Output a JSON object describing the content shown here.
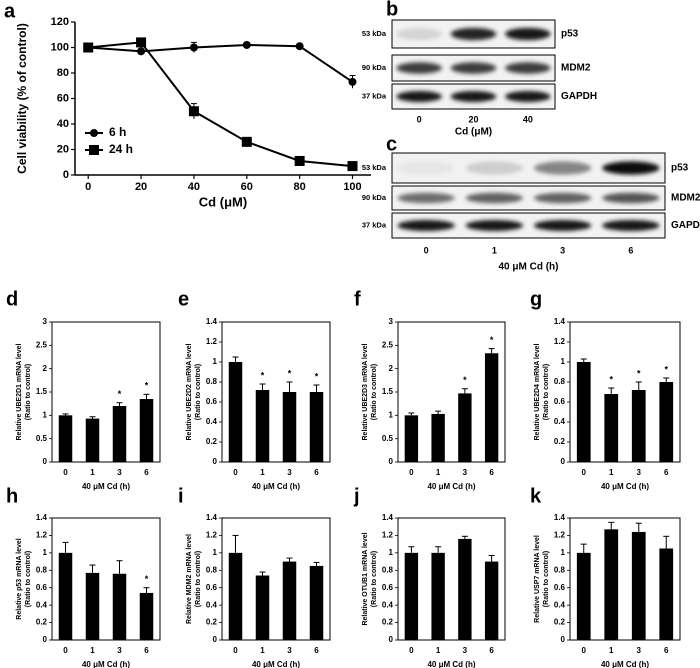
{
  "chart_data": [
    {
      "label": "a",
      "type": "line",
      "xlabel": "Cd (μM)",
      "ylabel": "Cell viability (% of control)",
      "x": [
        0,
        20,
        40,
        60,
        80,
        100
      ],
      "series": [
        {
          "name": "6 h",
          "color": "#000000",
          "marker": "circle",
          "values": [
            100,
            97,
            100,
            102,
            101,
            73
          ],
          "errors": [
            2,
            2,
            4,
            1,
            1,
            5
          ]
        },
        {
          "name": "24 h",
          "color": "#000000",
          "marker": "square",
          "values": [
            100,
            104,
            50,
            26,
            11,
            7
          ],
          "errors": [
            2,
            2,
            6,
            2,
            2,
            1
          ]
        }
      ],
      "xlim": [
        -5,
        107
      ],
      "ylim": [
        0,
        120
      ],
      "xticks": [
        0,
        20,
        40,
        60,
        80,
        100
      ],
      "yticks": [
        0,
        20,
        40,
        60,
        80,
        100,
        120
      ],
      "legend": "lower-left"
    },
    {
      "label": "d",
      "type": "bar",
      "xlabel": "40 μM Cd (h)",
      "ylabel": "Relative UBE2D1 mRNA level",
      "ylabel2": "(Ratio to control)",
      "color": "#000000",
      "categories": [
        "0",
        "1",
        "3",
        "6"
      ],
      "values": [
        1.0,
        0.93,
        1.2,
        1.35
      ],
      "errors": [
        0.03,
        0.04,
        0.07,
        0.1
      ],
      "annotations": [
        {
          "index": 2,
          "text": "*"
        },
        {
          "index": 3,
          "text": "*"
        }
      ],
      "ylim": [
        0,
        3
      ],
      "yticks": [
        0,
        0.5,
        1,
        1.5,
        2,
        2.5,
        3
      ]
    },
    {
      "label": "e",
      "type": "bar",
      "xlabel": "40 μM Cd (h)",
      "ylabel": "Relative UBE2D2 mRNA level",
      "ylabel2": "(Ratio to control)",
      "color": "#000000",
      "categories": [
        "0",
        "1",
        "3",
        "6"
      ],
      "values": [
        1.0,
        0.72,
        0.7,
        0.7
      ],
      "errors": [
        0.05,
        0.06,
        0.1,
        0.07
      ],
      "annotations": [
        {
          "index": 1,
          "text": "*"
        },
        {
          "index": 2,
          "text": "*"
        },
        {
          "index": 3,
          "text": "*"
        }
      ],
      "ylim": [
        0,
        1.4
      ],
      "yticks": [
        0,
        0.2,
        0.4,
        0.6,
        0.8,
        1,
        1.2,
        1.4
      ]
    },
    {
      "label": "f",
      "type": "bar",
      "xlabel": "40 μM Cd (h)",
      "ylabel": "Relative UBE2D3 mRNA level",
      "ylabel2": "(Ratio to control)",
      "color": "#000000",
      "categories": [
        "0",
        "1",
        "3",
        "6"
      ],
      "values": [
        1.0,
        1.03,
        1.47,
        2.33
      ],
      "errors": [
        0.05,
        0.06,
        0.1,
        0.1
      ],
      "annotations": [
        {
          "index": 2,
          "text": "*"
        },
        {
          "index": 3,
          "text": "*"
        }
      ],
      "ylim": [
        0,
        3
      ],
      "yticks": [
        0,
        0.5,
        1,
        1.5,
        2,
        2.5,
        3
      ]
    },
    {
      "label": "g",
      "type": "bar",
      "xlabel": "40 μM Cd (h)",
      "ylabel": "Relative UBE2D4 mRNA level",
      "ylabel2": "(Ratio to control)",
      "color": "#000000",
      "categories": [
        "0",
        "1",
        "3",
        "6"
      ],
      "values": [
        1.0,
        0.68,
        0.72,
        0.8
      ],
      "errors": [
        0.03,
        0.06,
        0.08,
        0.04
      ],
      "annotations": [
        {
          "index": 1,
          "text": "*"
        },
        {
          "index": 2,
          "text": "*"
        },
        {
          "index": 3,
          "text": "*"
        }
      ],
      "ylim": [
        0,
        1.4
      ],
      "yticks": [
        0,
        0.2,
        0.4,
        0.6,
        0.8,
        1,
        1.2,
        1.4
      ]
    },
    {
      "label": "h",
      "type": "bar",
      "xlabel": "40 μM Cd (h)",
      "ylabel": "Relative p53 mRNA level",
      "ylabel2": "(Ratio to control)",
      "color": "#000000",
      "categories": [
        "0",
        "1",
        "3",
        "6"
      ],
      "values": [
        1.0,
        0.77,
        0.76,
        0.54
      ],
      "errors": [
        0.12,
        0.09,
        0.15,
        0.06
      ],
      "annotations": [
        {
          "index": 3,
          "text": "*"
        }
      ],
      "ylim": [
        0,
        1.4
      ],
      "yticks": [
        0,
        0.2,
        0.4,
        0.6,
        0.8,
        1,
        1.2,
        1.4
      ]
    },
    {
      "label": "i",
      "type": "bar",
      "xlabel": "40 μM Cd (h)",
      "ylabel": "Relative MDM2 mRNA level",
      "ylabel2": "(Ratio to control)",
      "color": "#000000",
      "categories": [
        "0",
        "1",
        "3",
        "6"
      ],
      "values": [
        1.0,
        0.74,
        0.9,
        0.85
      ],
      "errors": [
        0.2,
        0.04,
        0.04,
        0.04
      ],
      "ylim": [
        0,
        1.4
      ],
      "yticks": [
        0,
        0.2,
        0.4,
        0.6,
        0.8,
        1,
        1.2,
        1.4
      ]
    },
    {
      "label": "j",
      "type": "bar",
      "xlabel": "40 μM Cd (h)",
      "ylabel": "Relative OTUB1 mRNA level",
      "ylabel2": "(Ratio to control)",
      "color": "#000000",
      "categories": [
        "0",
        "1",
        "3",
        "6"
      ],
      "values": [
        1.0,
        1.0,
        1.16,
        0.9
      ],
      "errors": [
        0.07,
        0.07,
        0.03,
        0.07
      ],
      "ylim": [
        0,
        1.4
      ],
      "yticks": [
        0,
        0.2,
        0.4,
        0.6,
        0.8,
        1,
        1.2,
        1.4
      ]
    },
    {
      "label": "k",
      "type": "bar",
      "xlabel": "40 μM Cd (h)",
      "ylabel": "Relative USP7 mRNA level",
      "ylabel2": "(Ratio to control)",
      "color": "#000000",
      "categories": [
        "0",
        "1",
        "3",
        "6"
      ],
      "values": [
        1.0,
        1.27,
        1.24,
        1.05
      ],
      "errors": [
        0.1,
        0.08,
        0.1,
        0.14
      ],
      "ylim": [
        0,
        1.4
      ],
      "yticks": [
        0,
        0.2,
        0.4,
        0.6,
        0.8,
        1,
        1.2,
        1.4
      ]
    }
  ],
  "blots": [
    {
      "label": "b",
      "xlabel": "Cd (μM)",
      "lanes": [
        "0",
        "20",
        "40"
      ],
      "bands": [
        {
          "name": "p53",
          "size": "53 kDa",
          "intensities": [
            0.12,
            0.85,
            0.9
          ]
        },
        {
          "name": "MDM2",
          "size": "90 kDa",
          "intensities": [
            0.75,
            0.75,
            0.75
          ]
        },
        {
          "name": "GAPDH",
          "size": "37 kDa",
          "intensities": [
            0.9,
            0.9,
            0.9
          ]
        }
      ]
    },
    {
      "label": "c",
      "xlabel": "40 μM Cd (h)",
      "lanes": [
        "0",
        "1",
        "3",
        "6"
      ],
      "bands": [
        {
          "name": "p53",
          "size": "53 kDa",
          "intensities": [
            0.05,
            0.15,
            0.45,
            0.95
          ]
        },
        {
          "name": "MDM2",
          "size": "90 kDa",
          "intensities": [
            0.55,
            0.6,
            0.6,
            0.65
          ]
        },
        {
          "name": "GAPDH",
          "size": "37 kDa",
          "intensities": [
            0.9,
            0.9,
            0.9,
            0.9
          ]
        }
      ]
    }
  ]
}
